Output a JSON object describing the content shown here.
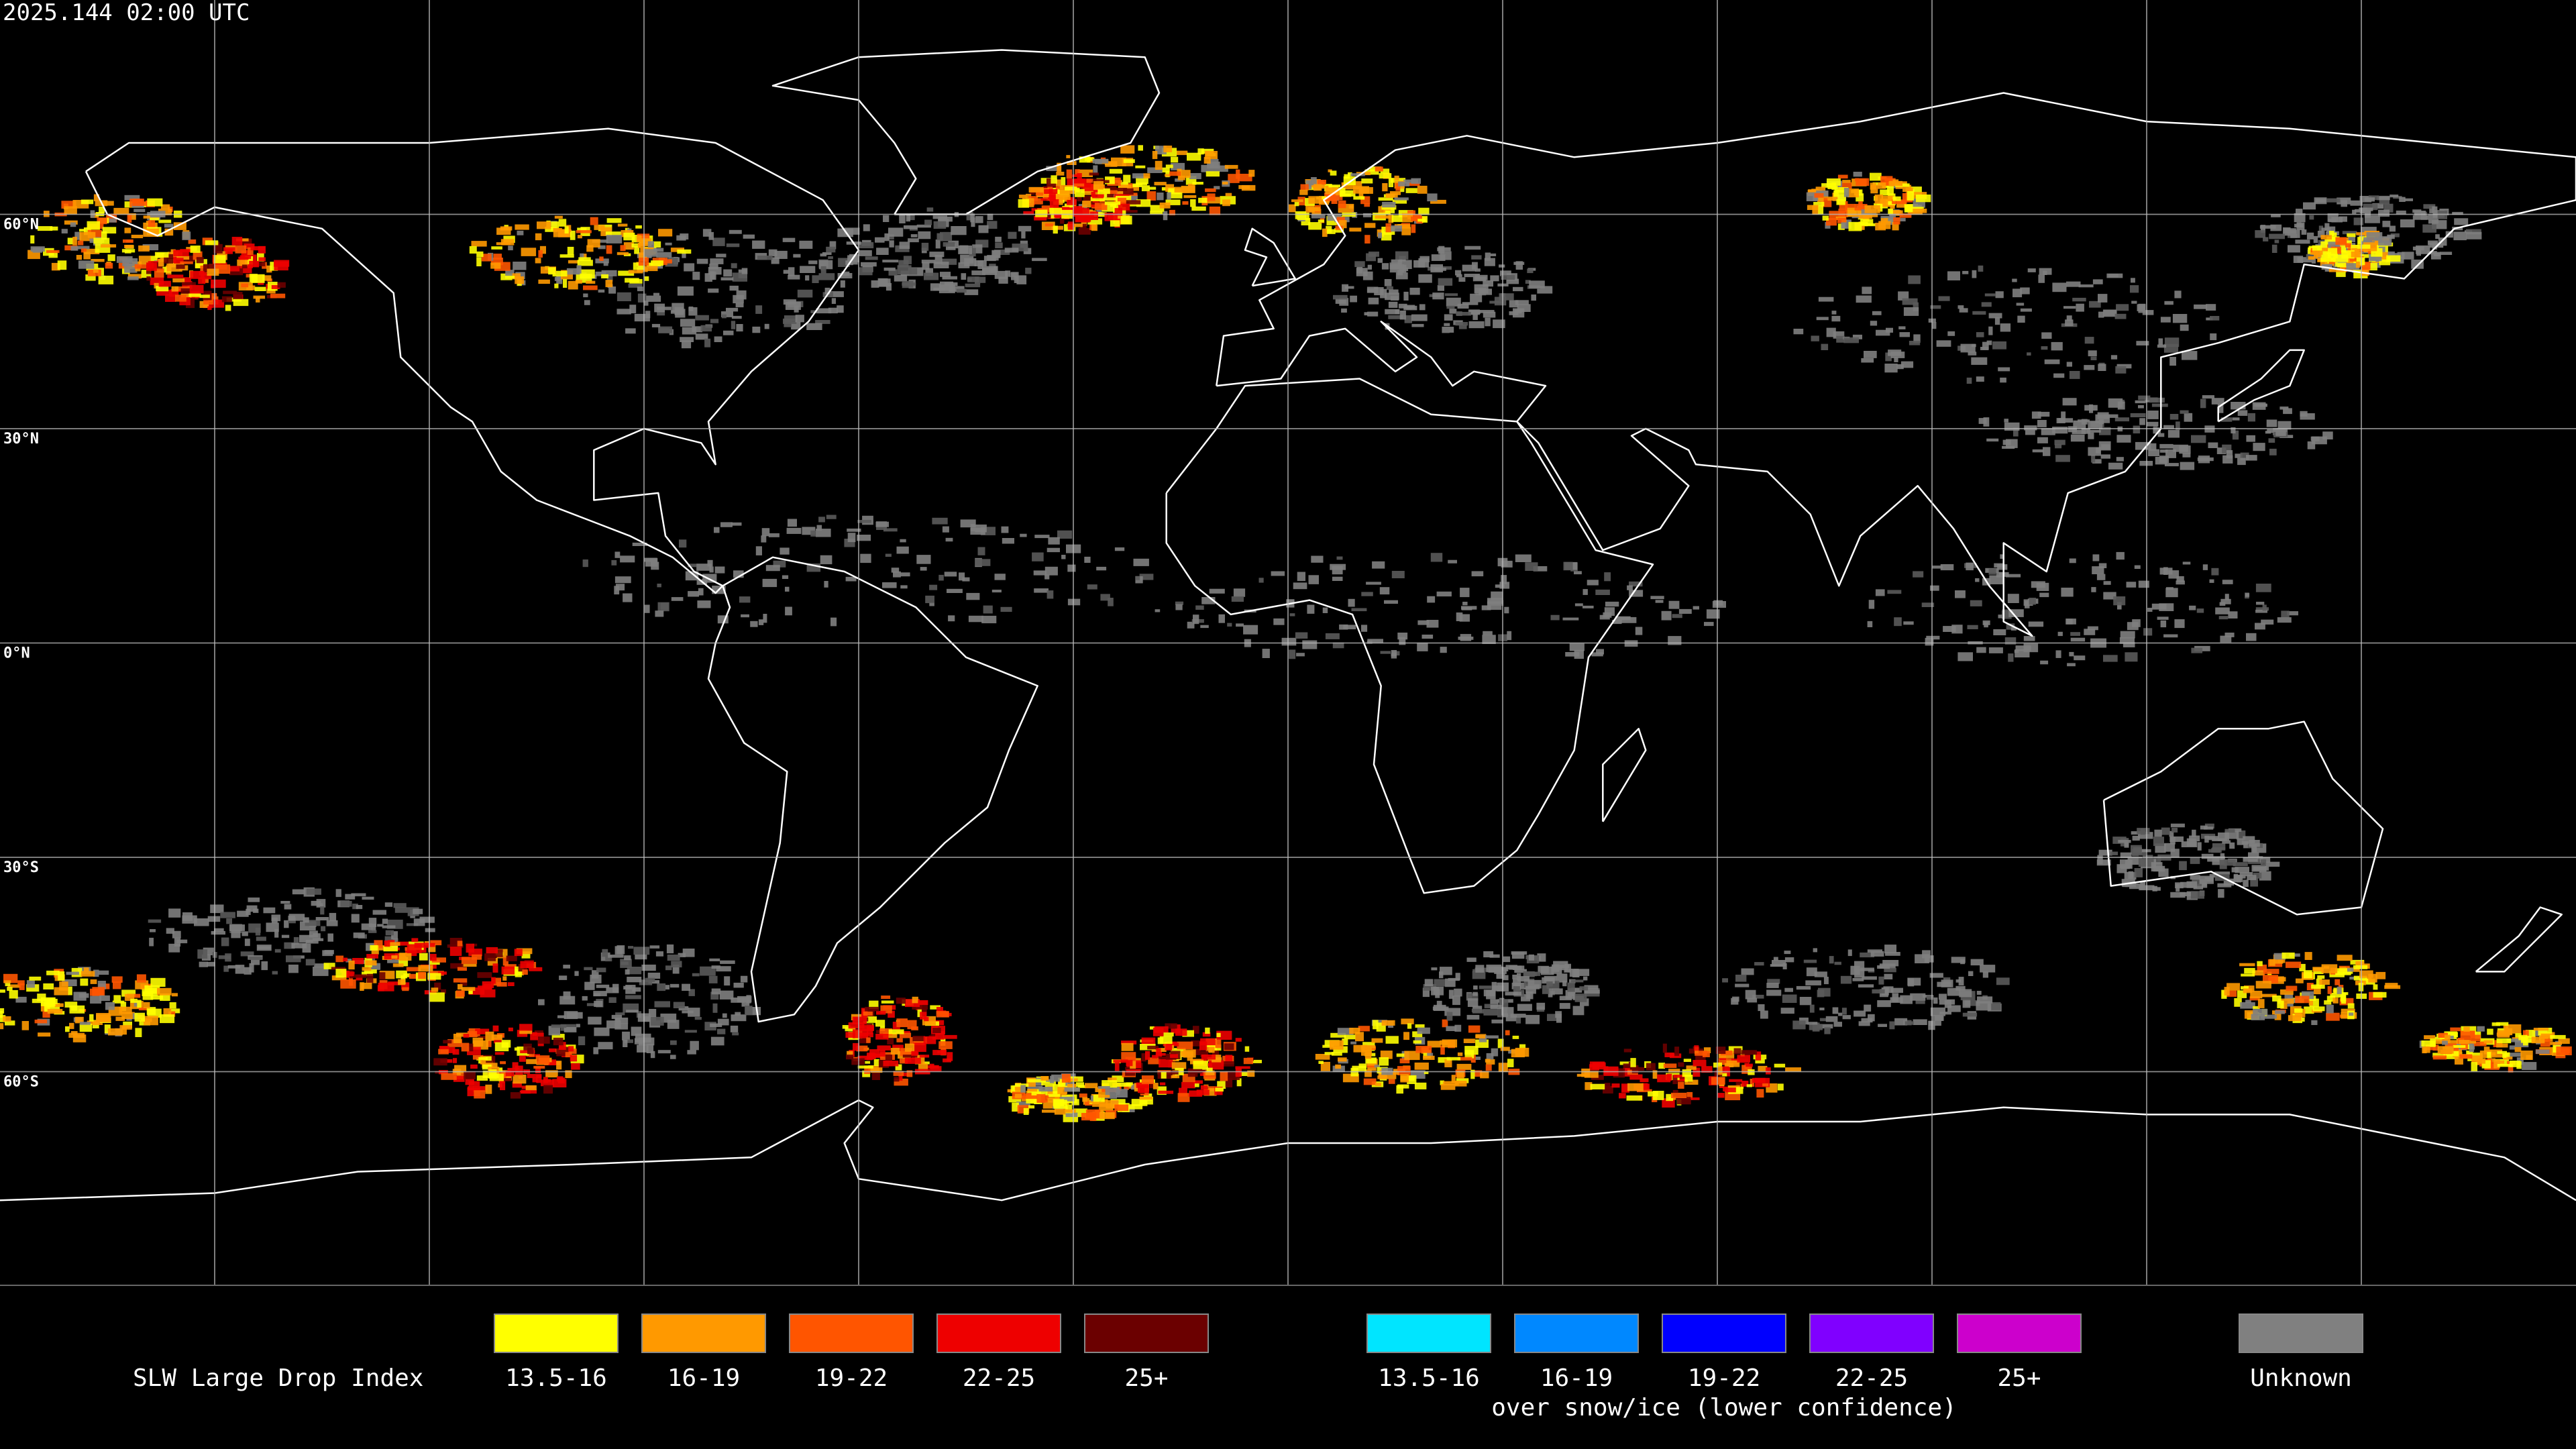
{
  "timestamp": "2025.144 02:00 UTC",
  "latitude_labels": [
    "60°N",
    "30°N",
    "0°N",
    "30°S",
    "60°S"
  ],
  "legend": {
    "title": "SLW Large Drop Index",
    "groups": [
      {
        "items": [
          {
            "label": "13.5-16",
            "color": "#ffff00"
          },
          {
            "label": "16-19",
            "color": "#ff9900"
          },
          {
            "label": "19-22",
            "color": "#ff5500"
          },
          {
            "label": "22-25",
            "color": "#ee0000"
          },
          {
            "label": "25+",
            "color": "#6b0000"
          }
        ]
      },
      {
        "items": [
          {
            "label": "13.5-16",
            "color": "#00e5ff"
          },
          {
            "label": "16-19",
            "color": "#0088ff"
          },
          {
            "label": "19-22",
            "color": "#0000ff"
          },
          {
            "label": "22-25",
            "color": "#8000ff"
          },
          {
            "label": "25+",
            "color": "#cc00cc"
          }
        ],
        "caption": "over snow/ice (lower confidence)"
      },
      {
        "items": [
          {
            "label": "Unknown",
            "color": "#808080"
          }
        ]
      }
    ]
  }
}
